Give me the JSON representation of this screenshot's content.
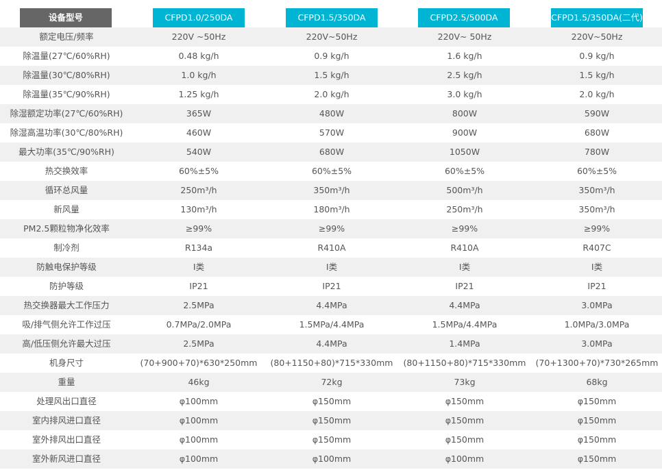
{
  "header": {
    "label": "设备型号",
    "models": [
      "CFPD1.0/250DA",
      "CFPD1.5/350DA",
      "CFPD2.5/500DA",
      "CFPD1.5/350DA(二代)"
    ]
  },
  "colors": {
    "header_dark": "#666666",
    "header_accent": "#00b4d4",
    "row_alt": "#f0f0f0",
    "text": "#555555"
  },
  "rows": [
    {
      "label": "额定电压/频率",
      "values": [
        "220V ~50Hz",
        "220V~50Hz",
        "220V~ 50Hz",
        "220V~50Hz"
      ]
    },
    {
      "label": "除温量(27℃/60%RH)",
      "values": [
        "0.48 kg/h",
        "0.9 kg/h",
        "1.6 kg/h",
        "0.9 kg/h"
      ]
    },
    {
      "label": "除温量(30℃/80%RH)",
      "values": [
        "1.0 kg/h",
        "1.5 kg/h",
        "2.5 kg/h",
        "1.5 kg/h"
      ]
    },
    {
      "label": "除温量(35℃/90%RH)",
      "values": [
        "1.25 kg/h",
        "2.0 kg/h",
        "3.0 kg/h",
        "2.0 kg/h"
      ]
    },
    {
      "label": "除湿额定功率(27℃/60%RH)",
      "values": [
        "365W",
        "480W",
        "800W",
        "590W"
      ]
    },
    {
      "label": "除湿高温功率(30℃/80%RH)",
      "values": [
        "460W",
        "570W",
        "900W",
        "680W"
      ]
    },
    {
      "label": "最大功率(35℃/90%RH)",
      "values": [
        "540W",
        "680W",
        "1050W",
        "780W"
      ]
    },
    {
      "label": "热交换效率",
      "values": [
        "60%±5%",
        "60%±5%",
        "60%±5%",
        "60%±5%"
      ]
    },
    {
      "label": "循环总风量",
      "values": [
        "250m³/h",
        "350m³/h",
        "500m³/h",
        "350m³/h"
      ]
    },
    {
      "label": "新风量",
      "values": [
        "130m³/h",
        "180m³/h",
        "250m³/h",
        "350m³/h"
      ]
    },
    {
      "label": "PM2.5颗粒物净化效率",
      "values": [
        "≥99%",
        "≥99%",
        "≥99%",
        "≥99%"
      ]
    },
    {
      "label": "制冷剂",
      "values": [
        "R134a",
        "R410A",
        "R410A",
        "R407C"
      ]
    },
    {
      "label": "防触电保护等级",
      "values": [
        "I类",
        "I类",
        "I类",
        "I类"
      ]
    },
    {
      "label": "防护等级",
      "values": [
        "IP21",
        "IP21",
        "IP21",
        "IP21"
      ]
    },
    {
      "label": "热交换器最大工作压力",
      "values": [
        "2.5MPa",
        "4.4MPa",
        "4.4MPa",
        "3.0MPa"
      ]
    },
    {
      "label": "吸/排气侧允许工作过压",
      "values": [
        "0.7MPa/2.0MPa",
        "1.5MPa/4.4MPa",
        "1.5MPa/4.4MPa",
        "1.0MPa/3.0MPa"
      ]
    },
    {
      "label": "高/低压侧允许最大过压",
      "values": [
        "2.5MPa",
        "4.4MPa",
        "1.4MPa",
        "3.0MPa"
      ]
    },
    {
      "label": "机身尺寸",
      "values": [
        "(70+900+70)*630*250mm",
        "(80+1150+80)*715*330mm",
        "(80+1150+80)*715*330mm",
        "(70+1300+70)*730*265mm"
      ]
    },
    {
      "label": "重量",
      "values": [
        "46kg",
        "72kg",
        "73kg",
        "68kg"
      ]
    },
    {
      "label": "处理风出口直径",
      "values": [
        "φ100mm",
        "φ150mm",
        "φ150mm",
        "φ150mm"
      ]
    },
    {
      "label": "室内排风进口直径",
      "values": [
        "φ100mm",
        "φ150mm",
        "φ150mm",
        "φ150mm"
      ]
    },
    {
      "label": "室外排风出口直径",
      "values": [
        "φ100mm",
        "φ150mm",
        "φ150mm",
        "φ150mm"
      ]
    },
    {
      "label": "室外新风进口直径",
      "values": [
        "φ100mm",
        "φ100mm",
        "φ100mm",
        "φ150mm"
      ]
    }
  ]
}
